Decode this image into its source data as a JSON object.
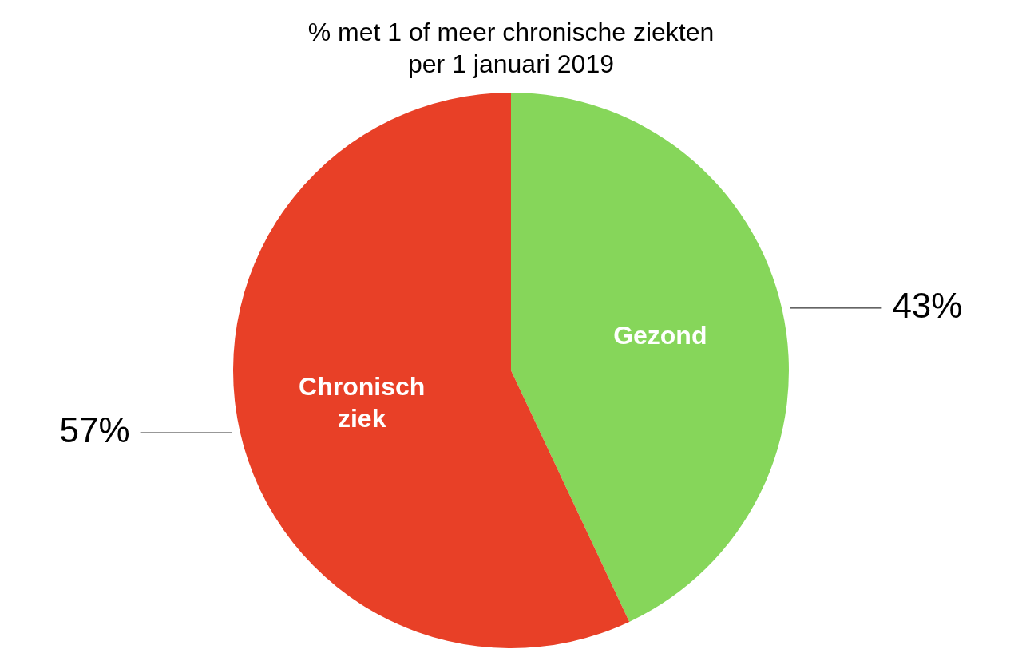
{
  "chart_data": {
    "type": "pie",
    "title": "% met 1 of meer chronische ziekten\nper 1 januari 2019",
    "categories": [
      "Gezond",
      "Chronisch ziek"
    ],
    "values": [
      43,
      57
    ],
    "colors": [
      "#86d65a",
      "#e84027"
    ],
    "value_labels": [
      "43%",
      "57%"
    ],
    "legend": false
  }
}
